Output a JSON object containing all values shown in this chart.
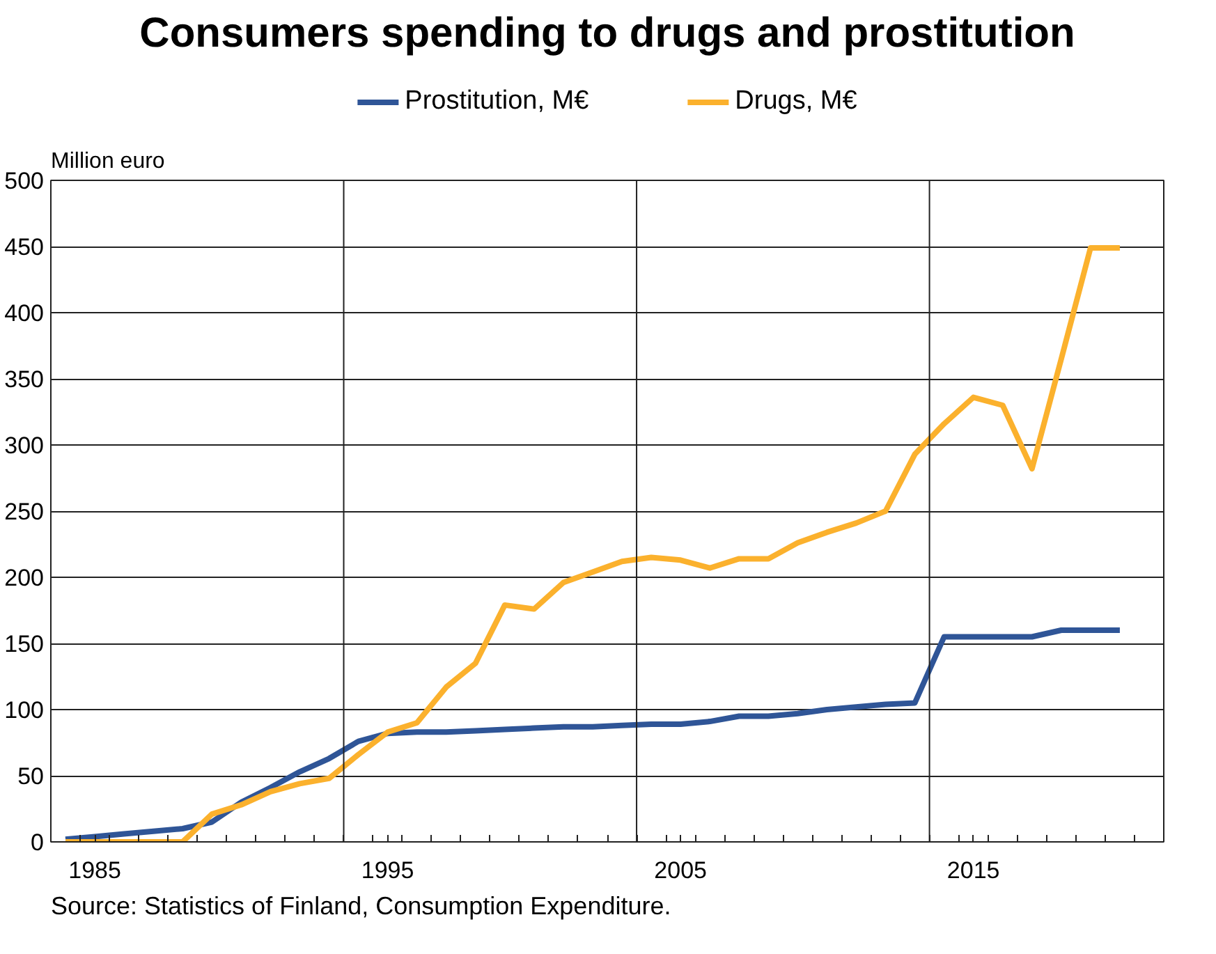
{
  "chart_data": {
    "type": "line",
    "title": "Consumers spending to drugs and prostitution",
    "ylabel": "Million euro",
    "x": [
      1984,
      1985,
      1986,
      1987,
      1988,
      1989,
      1990,
      1991,
      1992,
      1993,
      1994,
      1995,
      1996,
      1997,
      1998,
      1999,
      2000,
      2001,
      2002,
      2003,
      2004,
      2005,
      2006,
      2007,
      2008,
      2009,
      2010,
      2011,
      2012,
      2013,
      2014,
      2015,
      2016,
      2017,
      2018,
      2019,
      2020
    ],
    "series": [
      {
        "name": "Prostitution, M€",
        "color": "#2f5597",
        "values": [
          2,
          4,
          6,
          8,
          10,
          15,
          30,
          41,
          53,
          63,
          76,
          82,
          83,
          83,
          84,
          85,
          86,
          87,
          87,
          88,
          89,
          89,
          91,
          95,
          95,
          97,
          100,
          102,
          104,
          105,
          155,
          155,
          155,
          155,
          160,
          160,
          160
        ]
      },
      {
        "name": "Drugs, M€",
        "color": "#fbb12d",
        "values": [
          0,
          0,
          0,
          0,
          0,
          21,
          28,
          38,
          44,
          48,
          66,
          83,
          90,
          117,
          135,
          179,
          176,
          196,
          204,
          212,
          215,
          213,
          207,
          214,
          214,
          226,
          234,
          241,
          250,
          293,
          316,
          336,
          330,
          282,
          365,
          449,
          449
        ]
      }
    ],
    "xlim": [
      1983.5,
      2021.5
    ],
    "xticks": [
      {
        "value": 1983.5,
        "label": null
      },
      {
        "value": 1984.5,
        "label": null
      },
      1985,
      {
        "value": 1985.5,
        "label": null
      },
      {
        "value": 1986.5,
        "label": null
      },
      {
        "value": 1987.5,
        "label": null
      },
      {
        "value": 1988.5,
        "label": null
      },
      {
        "value": 1989.5,
        "label": null
      },
      {
        "value": 1990.5,
        "label": null
      },
      {
        "value": 1991.5,
        "label": null
      },
      {
        "value": 1992.5,
        "label": null
      },
      {
        "value": 1993.5,
        "label": null
      },
      {
        "value": 1994.5,
        "label": null
      },
      1995,
      {
        "value": 1995.5,
        "label": null
      },
      {
        "value": 1996.5,
        "label": null
      },
      {
        "value": 1997.5,
        "label": null
      },
      {
        "value": 1998.5,
        "label": null
      },
      {
        "value": 1999.5,
        "label": null
      },
      {
        "value": 2000.5,
        "label": null
      },
      {
        "value": 2001.5,
        "label": null
      },
      {
        "value": 2002.5,
        "label": null
      },
      {
        "value": 2003.5,
        "label": null
      },
      {
        "value": 2004.5,
        "label": null
      },
      2005,
      {
        "value": 2005.5,
        "label": null
      },
      {
        "value": 2006.5,
        "label": null
      },
      {
        "value": 2007.5,
        "label": null
      },
      {
        "value": 2008.5,
        "label": null
      },
      {
        "value": 2009.5,
        "label": null
      },
      {
        "value": 2010.5,
        "label": null
      },
      {
        "value": 2011.5,
        "label": null
      },
      {
        "value": 2012.5,
        "label": null
      },
      {
        "value": 2013.5,
        "label": null
      },
      {
        "value": 2014.5,
        "label": null
      },
      2015,
      {
        "value": 2015.5,
        "label": null
      },
      {
        "value": 2016.5,
        "label": null
      },
      {
        "value": 2017.5,
        "label": null
      },
      {
        "value": 2018.5,
        "label": null
      },
      {
        "value": 2019.5,
        "label": null
      },
      {
        "value": 2020.5,
        "label": null
      },
      {
        "value": 2021.5,
        "label": null
      }
    ],
    "ylim": [
      0,
      500
    ],
    "yticks": [
      0,
      50,
      100,
      150,
      200,
      250,
      300,
      350,
      400,
      450,
      500
    ],
    "grid": "y",
    "legend": "top",
    "line_style": "solid",
    "ref_lines": [
      {
        "axis": "x",
        "value": 1993.5,
        "color": "#222222"
      },
      {
        "axis": "x",
        "value": 2003.5,
        "color": "#222222"
      },
      {
        "axis": "x",
        "value": 2013.5,
        "color": "#222222"
      }
    ],
    "annotations": [
      "Source: Statistics of Finland, Consumption Expenditure."
    ]
  }
}
